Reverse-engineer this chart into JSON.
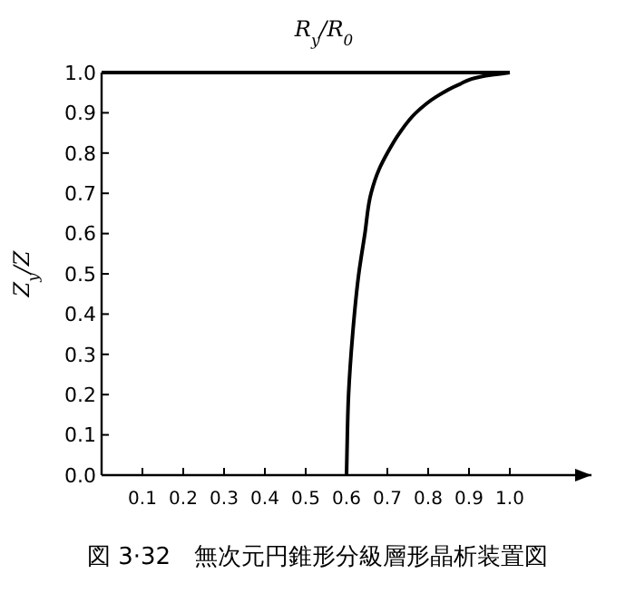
{
  "chart_data": {
    "type": "line",
    "title": "図 3·32　無次元円錐形分級層形晶析装置図",
    "xlabel": "R$_{y}$/R$_{0}$",
    "ylabel": "Z$_{y}$/Z",
    "xlim": [
      0,
      1.2
    ],
    "ylim": [
      0,
      1
    ],
    "xticks": [
      0.1,
      0.2,
      0.3,
      0.4,
      0.5,
      0.6,
      0.7,
      0.8,
      0.9,
      {
        "value": 1,
        "label": "1.0"
      }
    ],
    "yticks": [
      {
        "value": 0,
        "label": "0.0"
      },
      0.1,
      0.2,
      0.3,
      0.4,
      0.5,
      0.6,
      0.7,
      0.8,
      0.9,
      {
        "value": 1,
        "label": "1.0"
      }
    ],
    "series": [
      {
        "color": "#000000",
        "x": [
          0,
          1
        ],
        "values": [
          1,
          1
        ]
      },
      {
        "color": "#000000",
        "x": [
          0.6,
          0.601,
          0.605,
          0.615,
          0.63,
          0.645,
          0.66,
          0.68,
          0.7,
          0.73,
          0.77,
          0.82,
          0.875,
          0.93,
          1.0
        ],
        "values": [
          0,
          0.05,
          0.2,
          0.35,
          0.5,
          0.6,
          0.7,
          0.76,
          0.8,
          0.85,
          0.9,
          0.94,
          0.97,
          0.99,
          1.0
        ]
      }
    ]
  }
}
